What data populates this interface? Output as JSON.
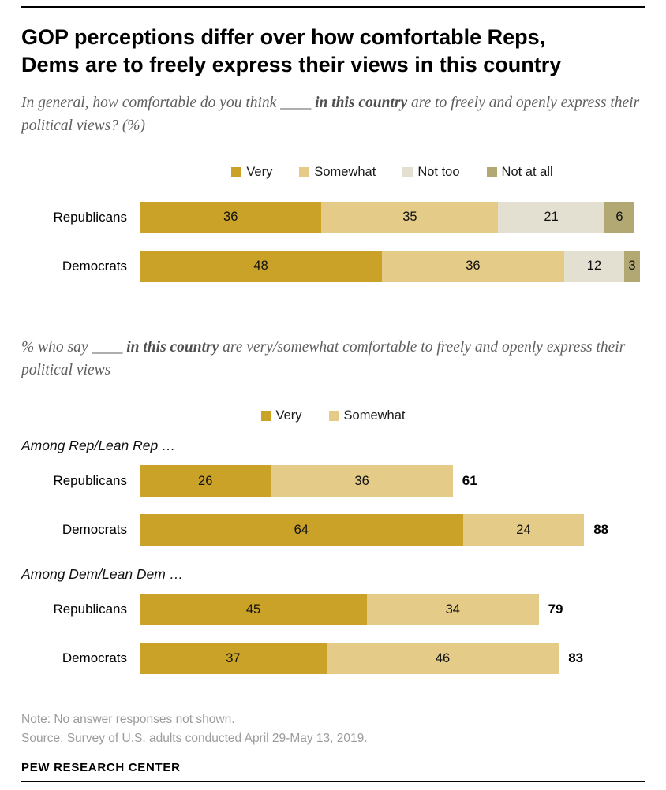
{
  "header": {
    "title_lines": [
      "GOP perceptions differ over how comfortable Reps,",
      "Dems are to freely express their views in this country"
    ],
    "subtitle1": {
      "prefix": "In general, how comfortable do you think ____ ",
      "bold": "in this country",
      "suffix": " are to freely and openly express their political views? (%)"
    },
    "subtitle2": {
      "prefix": "% who say ____ ",
      "bold": "in this country",
      "suffix": " are very/somewhat comfortable to freely and openly express their political views"
    }
  },
  "chart_data": [
    {
      "type": "bar",
      "orientation": "horizontal-stacked",
      "title": "In general, how comfortable do you think ____ in this country are to freely and openly express their political views? (%)",
      "categories": [
        "Republicans",
        "Democrats"
      ],
      "series": [
        {
          "name": "Very",
          "color": "#C9A227",
          "values": [
            36,
            48
          ]
        },
        {
          "name": "Somewhat",
          "color": "#E4CB87",
          "values": [
            35,
            36
          ]
        },
        {
          "name": "Not too",
          "color": "#E3E0D1",
          "values": [
            21,
            12
          ]
        },
        {
          "name": "Not at all",
          "color": "#B2A873",
          "values": [
            6,
            3
          ]
        }
      ],
      "xlim": [
        0,
        100
      ],
      "legend_position": "top"
    },
    {
      "type": "bar",
      "orientation": "horizontal-stacked",
      "title": "% who say ____ in this country are very/somewhat comfortable to freely and openly express their political views",
      "series": [
        {
          "name": "Very",
          "color": "#C9A227"
        },
        {
          "name": "Somewhat",
          "color": "#E4CB87"
        }
      ],
      "groups": [
        {
          "label": "Among Rep/Lean Rep …",
          "rows": [
            {
              "category": "Republicans",
              "values": [
                26,
                36
              ],
              "total": 61
            },
            {
              "category": "Democrats",
              "values": [
                64,
                24
              ],
              "total": 88
            }
          ]
        },
        {
          "label": "Among Dem/Lean Dem …",
          "rows": [
            {
              "category": "Republicans",
              "values": [
                45,
                34
              ],
              "total": 79
            },
            {
              "category": "Democrats",
              "values": [
                37,
                46
              ],
              "total": 83
            }
          ]
        }
      ],
      "xlim": [
        0,
        100
      ],
      "legend_position": "top"
    }
  ],
  "footer": {
    "note": "Note: No answer responses not shown.",
    "source": "Source: Survey of U.S. adults conducted April 29-May 13, 2019.",
    "brand": "PEW RESEARCH CENTER"
  }
}
